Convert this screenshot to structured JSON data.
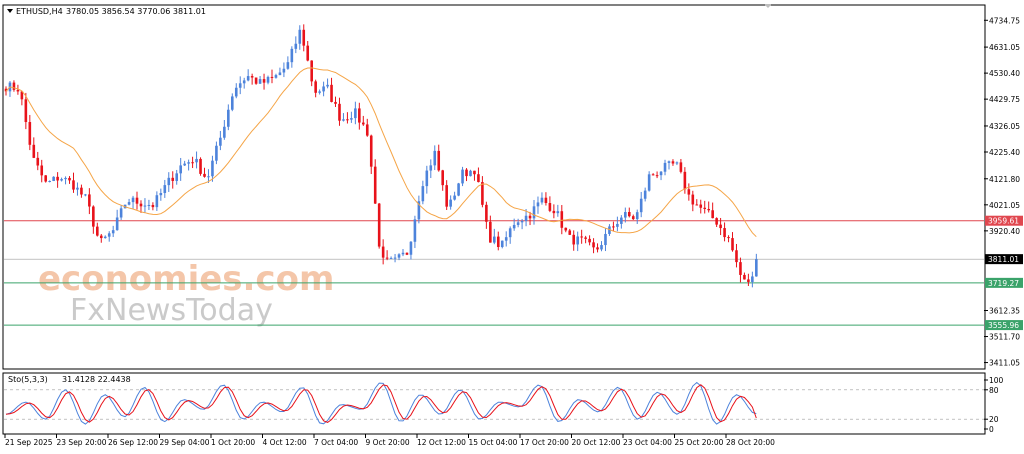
{
  "header": {
    "symbol": "ETHUSD,H4",
    "ohlc": "3780.05 3856.54 3770.06 3811.01"
  },
  "watermark": {
    "line1": "economies.com",
    "line2": "FxNewsToday"
  },
  "colors": {
    "bull": "#4d83db",
    "bear": "#e8121a",
    "ma": "#f5a547",
    "resistance": "#e0474f",
    "support": "#3aa36a",
    "price_line": "#9e9e9e",
    "sto_main": "#4d83db",
    "sto_signal": "#e8121a"
  },
  "chart_data": [
    {
      "type": "candlestick",
      "title": "ETHUSD,H4",
      "timeframe": "H4",
      "ylim": [
        3390,
        4790
      ],
      "y_ticks": [
        "4734.75",
        "4631.05",
        "4530.40",
        "4429.75",
        "4326.05",
        "4225.40",
        "4121.80",
        "4021.05",
        "3920.40",
        "3612.35",
        "3511.70",
        "3411.05"
      ],
      "x_ticks": [
        "21 Sep 2025",
        "23 Sep 20:00",
        "26 Sep 12:00",
        "29 Sep 04:00",
        "1 Oct 20:00",
        "4 Oct 12:00",
        "7 Oct 04:00",
        "9 Oct 20:00",
        "12 Oct 12:00",
        "15 Oct 04:00",
        "17 Oct 20:00",
        "20 Oct 12:00",
        "23 Oct 04:00",
        "25 Oct 20:00",
        "28 Oct 20:00"
      ],
      "last_price": {
        "label": "3811.01",
        "value": 3811.01
      },
      "horizontal_levels": [
        {
          "label": "3959.61",
          "value": 3959.61,
          "kind": "resistance"
        },
        {
          "label": "3719.27",
          "value": 3719.27,
          "kind": "support"
        },
        {
          "label": "3555.96",
          "value": 3555.96,
          "kind": "support"
        }
      ],
      "close_path": [
        4480,
        4470,
        4200,
        4100,
        4130,
        4100,
        4040,
        3870,
        3920,
        4040,
        4030,
        4020,
        4100,
        4170,
        4200,
        4120,
        4280,
        4470,
        4520,
        4490,
        4510,
        4560,
        4700,
        4460,
        4470,
        4350,
        4380,
        4300,
        3800,
        3800,
        3840,
        4100,
        4220,
        4000,
        4140,
        4160,
        3900,
        3860,
        3960,
        3980,
        4040,
        4000,
        3890,
        3880,
        3840,
        3920,
        3980,
        3970,
        4130,
        4160,
        4180,
        4050,
        4000,
        3960,
        3880,
        3720,
        3740
      ]
    },
    {
      "type": "line",
      "title": "Sto(5,3,3)",
      "header_values": "31.4128 22.4438",
      "ylim": [
        0,
        100
      ],
      "y_ticks": [
        "100",
        "80",
        "20",
        "0"
      ],
      "main_value": 31.4128,
      "signal_value": 22.4438,
      "cycles": [
        30,
        55,
        20,
        80,
        10,
        70,
        25,
        85,
        15,
        60,
        40,
        90,
        20,
        55,
        35,
        85,
        10,
        50,
        40,
        95,
        15,
        70,
        30,
        80,
        20,
        55,
        45,
        90,
        15,
        60,
        35,
        85,
        20,
        75,
        30,
        95,
        10,
        70,
        30
      ]
    }
  ]
}
